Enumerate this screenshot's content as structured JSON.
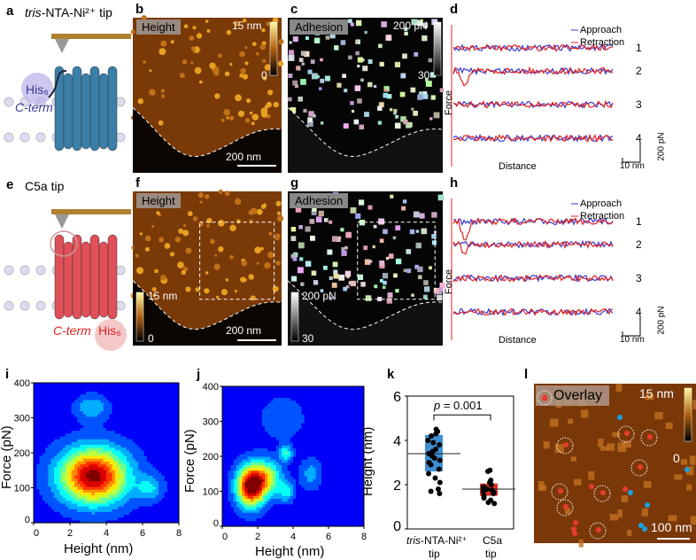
{
  "panels": {
    "a": "a",
    "b": "b",
    "c": "c",
    "d": "d",
    "e": "e",
    "f": "f",
    "g": "g",
    "h": "h",
    "i": "i",
    "j": "j",
    "k": "k",
    "l": "l"
  },
  "a": {
    "title_italic": "tris",
    "title_rest": "-NTA-Ni²⁺ tip",
    "his": "His₆",
    "cterm": "C-term"
  },
  "e": {
    "title": "C5a tip",
    "his": "His₆",
    "cterm": "C-term"
  },
  "b": {
    "label": "Height",
    "cbar_max": "15 nm",
    "cbar_min": "0",
    "scale": "200 nm"
  },
  "c": {
    "label": "Adhesion",
    "cbar_max": "200 pN",
    "cbar_min": "30"
  },
  "f": {
    "label": "Height",
    "cbar_max": "15 nm",
    "cbar_min": "0",
    "scale": "200 nm"
  },
  "g": {
    "label": "Adhesion",
    "cbar_max": "200 pN",
    "cbar_min": "30"
  },
  "curves": {
    "legend": [
      "Approach",
      "Retraction"
    ],
    "colors": {
      "approach": "#3a3ad0",
      "retraction": "#e0201c"
    },
    "ylabel": "Force",
    "xlabel": "Distance",
    "numbers": [
      "1",
      "2",
      "3",
      "4"
    ],
    "scale_x": "10 nm",
    "scale_y": "200 pN"
  },
  "l": {
    "label": "Overlay",
    "cbar_max": "15 nm",
    "cbar_min": "0",
    "scale": "100 nm",
    "colors": {
      "red": "#e83a32",
      "blue": "#1aa0e0"
    }
  },
  "chart_data": [
    {
      "panel": "i",
      "type": "heatmap",
      "xlabel": "Height (nm)",
      "ylabel": "Force (pN)",
      "xlim": [
        0,
        8
      ],
      "ylim": [
        0,
        400
      ],
      "xticks": [
        "0",
        "2",
        "4",
        "6",
        "8"
      ],
      "yticks": [
        "0",
        "100",
        "200",
        "300",
        "400"
      ],
      "peaks": [
        {
          "x": 3.3,
          "y": 135,
          "sx": 1.3,
          "sy": 55,
          "w": 1
        },
        {
          "x": 3.2,
          "y": 330,
          "sx": 0.6,
          "sy": 25,
          "w": 0.25
        },
        {
          "x": 6.4,
          "y": 100,
          "sx": 0.5,
          "sy": 25,
          "w": 0.25
        }
      ]
    },
    {
      "panel": "j",
      "type": "heatmap",
      "xlabel": "Height (nm)",
      "ylabel": "Force (pN)",
      "xlim": [
        0,
        8
      ],
      "ylim": [
        0,
        400
      ],
      "xticks": [
        "0",
        "2",
        "4",
        "6",
        "8"
      ],
      "yticks": [
        "0",
        "100",
        "200",
        "300",
        "400"
      ],
      "peaks": [
        {
          "x": 1.6,
          "y": 115,
          "sx": 0.55,
          "sy": 40,
          "w": 1
        },
        {
          "x": 2.5,
          "y": 140,
          "sx": 0.6,
          "sy": 35,
          "w": 0.5
        },
        {
          "x": 3.6,
          "y": 210,
          "sx": 0.25,
          "sy": 15,
          "w": 0.35
        },
        {
          "x": 3.6,
          "y": 100,
          "sx": 0.3,
          "sy": 20,
          "w": 0.3
        },
        {
          "x": 3.4,
          "y": 310,
          "sx": 0.8,
          "sy": 40,
          "w": 0.15
        },
        {
          "x": 5.0,
          "y": 150,
          "sx": 0.4,
          "sy": 30,
          "w": 0.2
        }
      ]
    },
    {
      "panel": "k",
      "type": "box",
      "ylabel": "Height (nm)",
      "ylim": [
        0,
        6
      ],
      "yticks": [
        "0",
        "2",
        "4",
        "6"
      ],
      "annotation_p": "p",
      "annotation_rest": " = 0.001",
      "categories": [
        {
          "name_italic": "tris",
          "name_rest": "-NTA-Ni²⁺",
          "name2": "tip",
          "color": "#3d8fd1",
          "mean": 3.4,
          "box": [
            2.6,
            4.25
          ],
          "points": [
            1.6,
            1.7,
            1.8,
            2.1,
            2.3,
            2.5,
            2.7,
            2.9,
            3.0,
            3.1,
            3.2,
            3.3,
            3.4,
            3.5,
            3.6,
            3.8,
            3.9,
            4.0,
            4.2,
            4.3,
            4.4,
            4.5
          ]
        },
        {
          "name_italic": "",
          "name_rest": "C5a",
          "name2": "tip",
          "color": "#d9302a",
          "mean": 1.8,
          "box": [
            1.5,
            2.05
          ],
          "points": [
            1.15,
            1.2,
            1.3,
            1.4,
            1.5,
            1.6,
            1.65,
            1.7,
            1.75,
            1.8,
            1.85,
            1.9,
            2.0,
            2.1,
            2.2,
            2.6,
            2.65
          ]
        }
      ]
    }
  ]
}
